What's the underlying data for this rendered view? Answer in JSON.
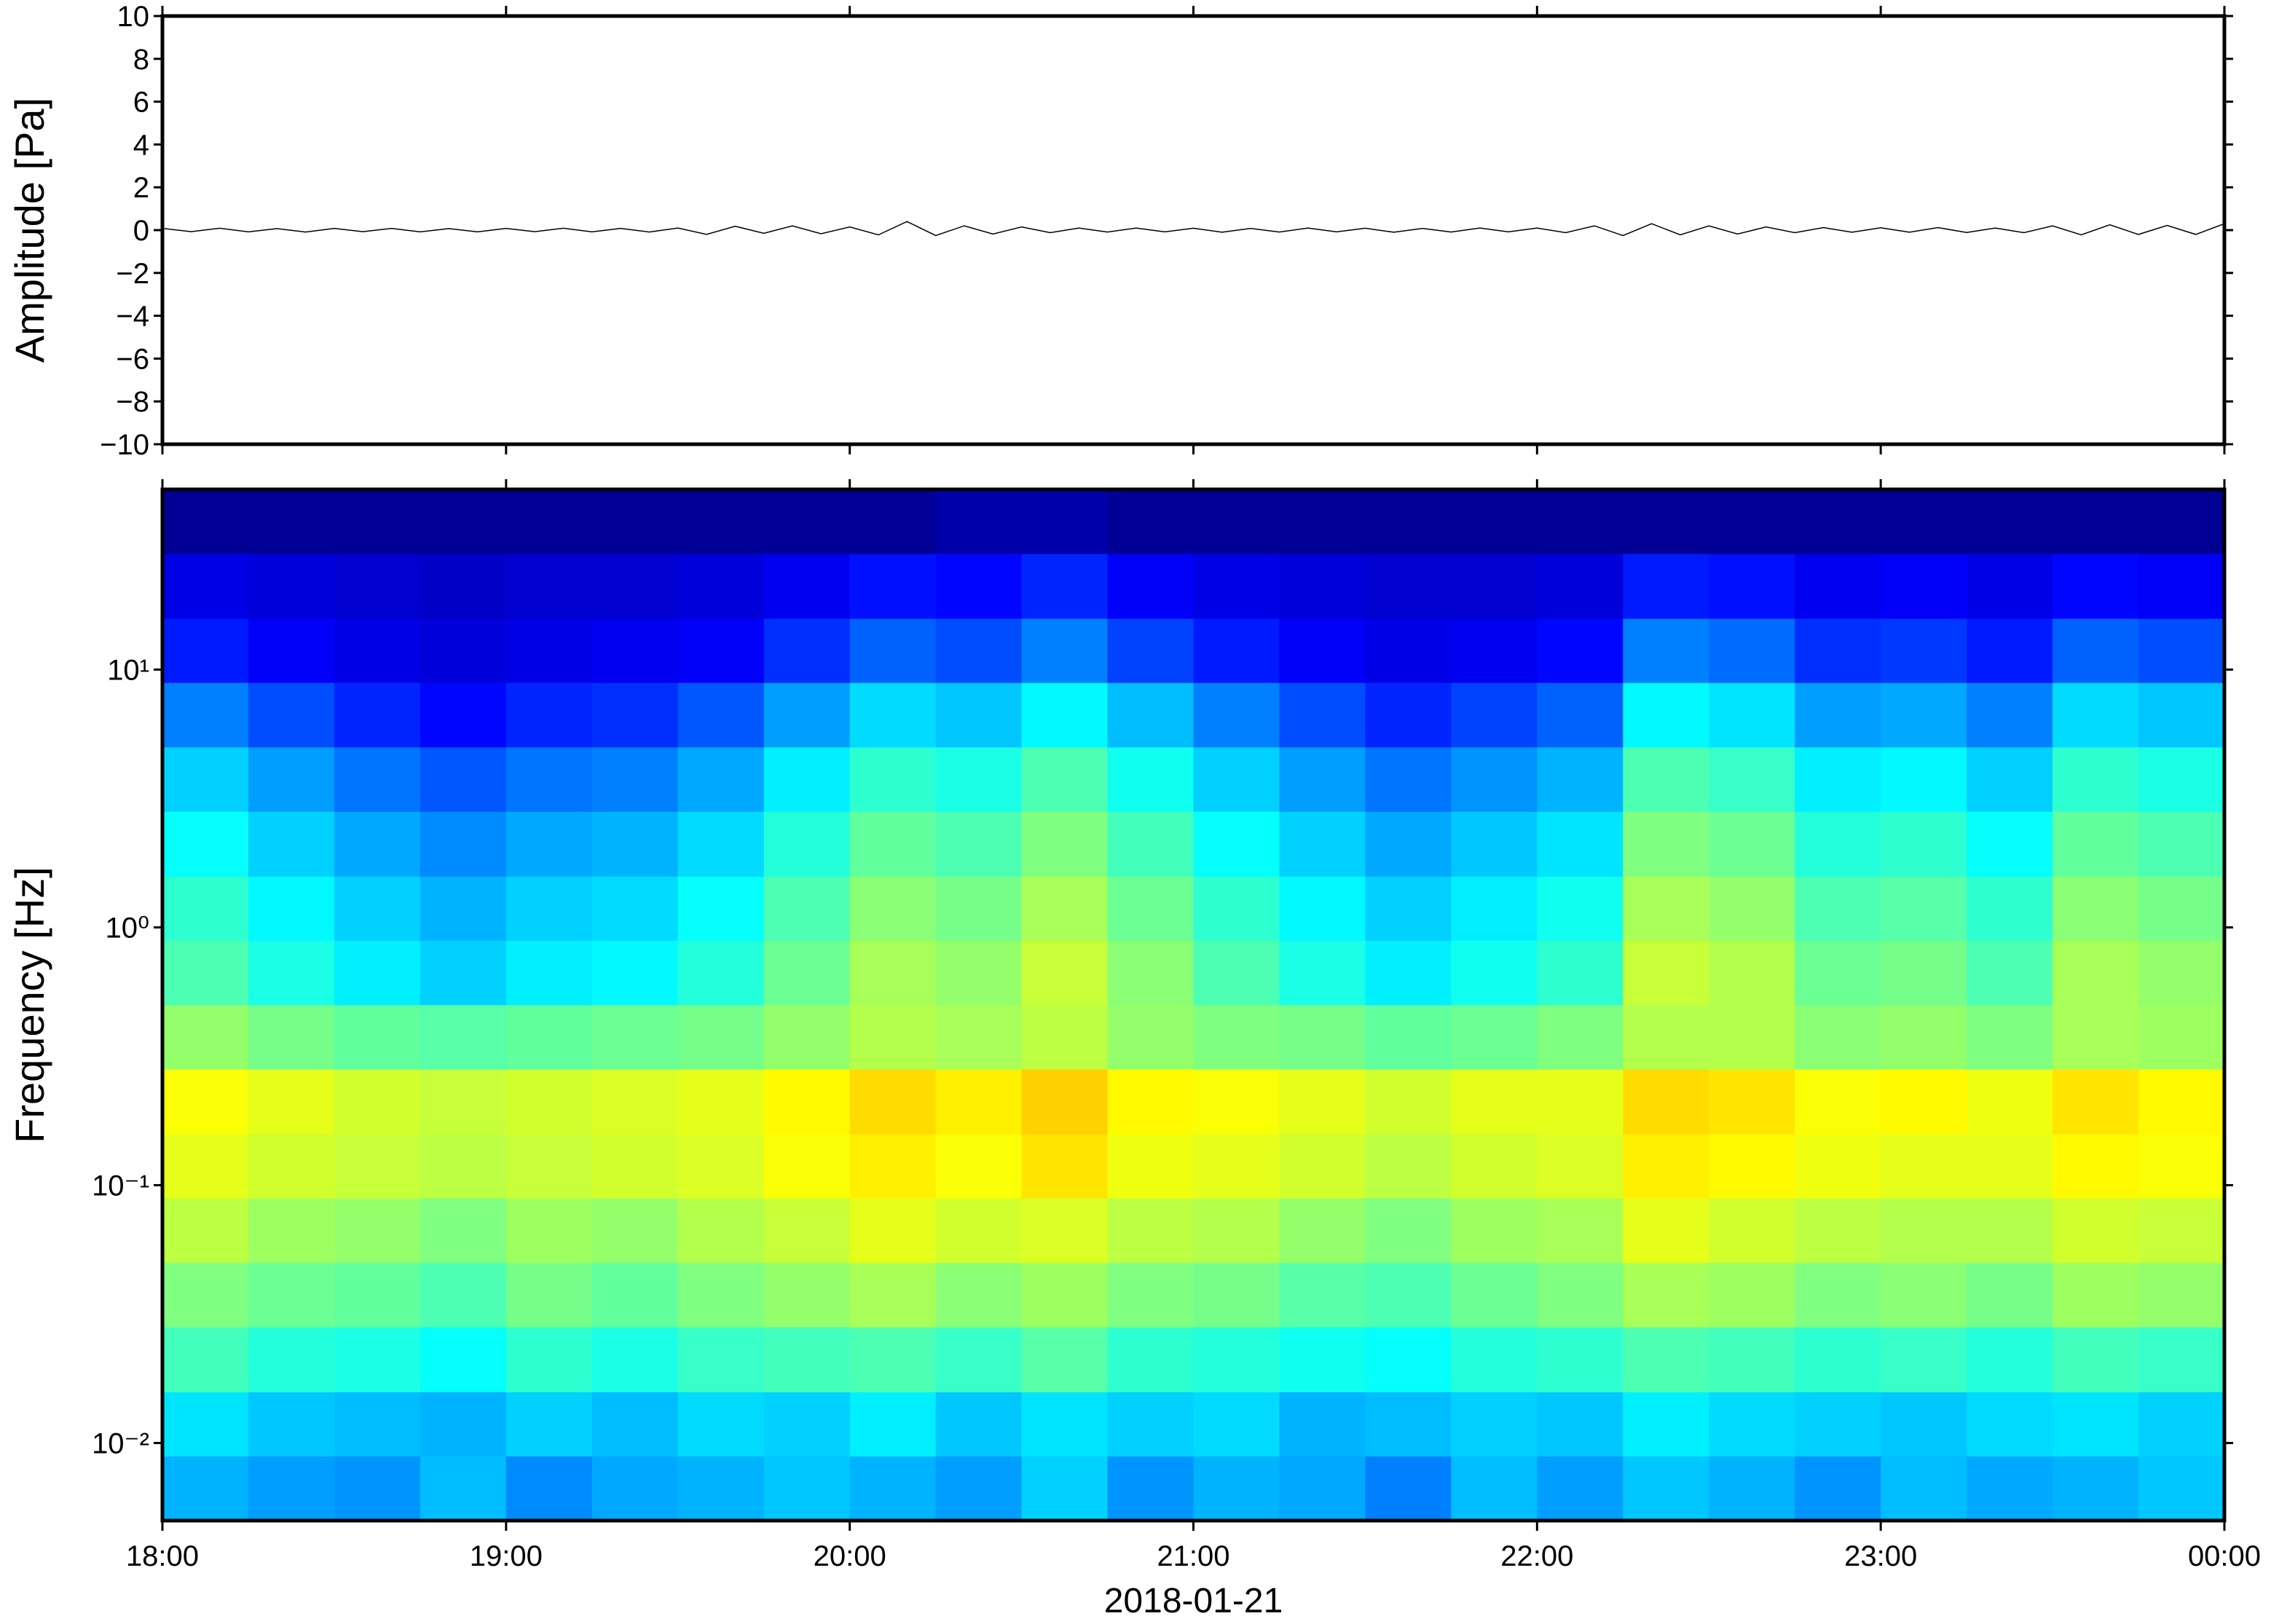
{
  "chart_data": [
    {
      "type": "line",
      "ylabel": "Amplitude [Pa]",
      "xlim": [
        0,
        360
      ],
      "ylim": [
        -10,
        10
      ],
      "yticks": [
        {
          "value": -10,
          "label": "−10"
        },
        {
          "value": -8,
          "label": "−8"
        },
        {
          "value": -6,
          "label": "−6"
        },
        {
          "value": -4,
          "label": "−4"
        },
        {
          "value": -2,
          "label": "−2"
        },
        0,
        2,
        4,
        6,
        8,
        10
      ],
      "color": "#000000",
      "x": [
        0,
        5,
        10,
        15,
        20,
        25,
        30,
        35,
        40,
        45,
        50,
        55,
        60,
        65,
        70,
        75,
        80,
        85,
        90,
        95,
        100,
        105,
        110,
        115,
        120,
        125,
        130,
        135,
        140,
        145,
        150,
        155,
        160,
        165,
        170,
        175,
        180,
        185,
        190,
        195,
        200,
        205,
        210,
        215,
        220,
        225,
        230,
        235,
        240,
        245,
        250,
        255,
        260,
        265,
        270,
        275,
        280,
        285,
        290,
        295,
        300,
        305,
        310,
        315,
        320,
        325,
        330,
        335,
        340,
        345,
        350,
        355,
        360
      ],
      "values": [
        0.08,
        -0.07,
        0.09,
        -0.08,
        0.07,
        -0.09,
        0.08,
        -0.07,
        0.08,
        -0.08,
        0.07,
        -0.08,
        0.08,
        -0.07,
        0.09,
        -0.08,
        0.08,
        -0.09,
        0.1,
        -0.2,
        0.18,
        -0.15,
        0.2,
        -0.17,
        0.15,
        -0.22,
        0.4,
        -0.25,
        0.2,
        -0.18,
        0.15,
        -0.12,
        0.1,
        -0.09,
        0.1,
        -0.08,
        0.09,
        -0.1,
        0.08,
        -0.09,
        0.1,
        -0.08,
        0.09,
        -0.1,
        0.08,
        -0.09,
        0.1,
        -0.08,
        0.1,
        -0.12,
        0.2,
        -0.25,
        0.3,
        -0.22,
        0.2,
        -0.18,
        0.15,
        -0.12,
        0.12,
        -0.1,
        0.11,
        -0.1,
        0.12,
        -0.11,
        0.1,
        -0.12,
        0.2,
        -0.22,
        0.25,
        -0.2,
        0.22,
        -0.2,
        0.3
      ]
    },
    {
      "type": "heatmap",
      "ylabel": "Frequency [Hz]",
      "xlabel": "2018-01-21",
      "colormap": "jet",
      "ylog": true,
      "xlim": [
        0,
        360
      ],
      "ylim": [
        0.005,
        50
      ],
      "xticks": [
        {
          "value": 0,
          "label": "18:00"
        },
        {
          "value": 60,
          "label": "19:00"
        },
        {
          "value": 120,
          "label": "20:00"
        },
        {
          "value": 180,
          "label": "21:00"
        },
        {
          "value": 240,
          "label": "22:00"
        },
        {
          "value": 300,
          "label": "23:00"
        },
        {
          "value": 360,
          "label": "00:00"
        }
      ],
      "yticks": [
        {
          "value": 0.01,
          "label": "10⁻²"
        },
        {
          "value": 0.1,
          "label": "10⁻¹"
        },
        {
          "value": 1,
          "label": "10⁰"
        },
        {
          "value": 10,
          "label": "10¹"
        }
      ],
      "x_edges": [
        0,
        15,
        30,
        45,
        60,
        75,
        90,
        105,
        120,
        135,
        150,
        165,
        180,
        195,
        210,
        225,
        240,
        255,
        270,
        285,
        300,
        315,
        330,
        345,
        360
      ],
      "y_edges": [
        0.005,
        0.0089,
        0.0158,
        0.0282,
        0.0501,
        0.0891,
        0.158,
        0.282,
        0.501,
        0.891,
        1.58,
        2.82,
        5.01,
        8.91,
        15.8,
        28.2,
        50
      ],
      "z": [
        [
          0.3,
          0.28,
          0.27,
          0.31,
          0.26,
          0.29,
          0.3,
          0.32,
          0.3,
          0.28,
          0.33,
          0.27,
          0.3,
          0.29,
          0.25,
          0.31,
          0.28,
          0.32,
          0.3,
          0.27,
          0.31,
          0.29,
          0.3,
          0.32
        ],
        [
          0.35,
          0.32,
          0.31,
          0.3,
          0.33,
          0.31,
          0.34,
          0.33,
          0.36,
          0.32,
          0.35,
          0.33,
          0.34,
          0.3,
          0.31,
          0.33,
          0.32,
          0.36,
          0.34,
          0.33,
          0.32,
          0.34,
          0.35,
          0.33
        ],
        [
          0.44,
          0.41,
          0.4,
          0.38,
          0.42,
          0.4,
          0.43,
          0.44,
          0.45,
          0.43,
          0.46,
          0.42,
          0.41,
          0.39,
          0.38,
          0.41,
          0.42,
          0.45,
          0.44,
          0.42,
          0.43,
          0.41,
          0.44,
          0.43
        ],
        [
          0.5,
          0.48,
          0.47,
          0.45,
          0.49,
          0.47,
          0.5,
          0.52,
          0.54,
          0.51,
          0.53,
          0.5,
          0.49,
          0.46,
          0.45,
          0.48,
          0.5,
          0.54,
          0.53,
          0.5,
          0.51,
          0.49,
          0.53,
          0.52
        ],
        [
          0.56,
          0.53,
          0.52,
          0.5,
          0.53,
          0.52,
          0.55,
          0.57,
          0.6,
          0.58,
          0.59,
          0.56,
          0.55,
          0.52,
          0.5,
          0.53,
          0.54,
          0.6,
          0.58,
          0.56,
          0.55,
          0.55,
          0.58,
          0.57
        ],
        [
          0.6,
          0.58,
          0.57,
          0.56,
          0.57,
          0.58,
          0.59,
          0.62,
          0.64,
          0.62,
          0.65,
          0.61,
          0.6,
          0.58,
          0.56,
          0.58,
          0.59,
          0.64,
          0.63,
          0.61,
          0.6,
          0.6,
          0.63,
          0.62
        ],
        [
          0.62,
          0.6,
          0.58,
          0.57,
          0.58,
          0.59,
          0.6,
          0.63,
          0.66,
          0.64,
          0.67,
          0.63,
          0.62,
          0.6,
          0.58,
          0.6,
          0.6,
          0.66,
          0.65,
          0.62,
          0.63,
          0.61,
          0.65,
          0.63
        ],
        [
          0.52,
          0.49,
          0.47,
          0.46,
          0.47,
          0.48,
          0.49,
          0.52,
          0.55,
          0.54,
          0.56,
          0.52,
          0.5,
          0.49,
          0.47,
          0.48,
          0.5,
          0.55,
          0.55,
          0.51,
          0.52,
          0.5,
          0.54,
          0.53
        ],
        [
          0.45,
          0.4,
          0.36,
          0.33,
          0.36,
          0.37,
          0.41,
          0.48,
          0.54,
          0.52,
          0.57,
          0.51,
          0.45,
          0.4,
          0.36,
          0.39,
          0.42,
          0.57,
          0.55,
          0.48,
          0.49,
          0.45,
          0.54,
          0.52
        ],
        [
          0.42,
          0.37,
          0.33,
          0.3,
          0.33,
          0.34,
          0.38,
          0.45,
          0.51,
          0.49,
          0.54,
          0.48,
          0.42,
          0.37,
          0.33,
          0.36,
          0.39,
          0.54,
          0.52,
          0.45,
          0.46,
          0.42,
          0.51,
          0.49
        ],
        [
          0.38,
          0.33,
          0.29,
          0.26,
          0.29,
          0.3,
          0.34,
          0.41,
          0.47,
          0.45,
          0.5,
          0.44,
          0.38,
          0.33,
          0.29,
          0.32,
          0.35,
          0.5,
          0.48,
          0.41,
          0.42,
          0.38,
          0.47,
          0.45
        ],
        [
          0.33,
          0.28,
          0.24,
          0.21,
          0.24,
          0.25,
          0.29,
          0.36,
          0.42,
          0.4,
          0.45,
          0.39,
          0.33,
          0.28,
          0.24,
          0.27,
          0.3,
          0.45,
          0.43,
          0.36,
          0.37,
          0.33,
          0.42,
          0.4
        ],
        [
          0.25,
          0.2,
          0.16,
          0.13,
          0.16,
          0.17,
          0.21,
          0.28,
          0.34,
          0.32,
          0.37,
          0.31,
          0.25,
          0.2,
          0.16,
          0.19,
          0.22,
          0.37,
          0.35,
          0.28,
          0.29,
          0.25,
          0.34,
          0.32
        ],
        [
          0.15,
          0.12,
          0.1,
          0.09,
          0.1,
          0.11,
          0.12,
          0.17,
          0.22,
          0.2,
          0.25,
          0.19,
          0.15,
          0.12,
          0.1,
          0.11,
          0.13,
          0.25,
          0.23,
          0.17,
          0.18,
          0.15,
          0.22,
          0.2
        ],
        [
          0.1,
          0.09,
          0.08,
          0.07,
          0.08,
          0.08,
          0.09,
          0.11,
          0.14,
          0.13,
          0.16,
          0.12,
          0.1,
          0.09,
          0.08,
          0.08,
          0.09,
          0.15,
          0.14,
          0.11,
          0.12,
          0.1,
          0.13,
          0.12
        ],
        [
          0.02,
          0.02,
          0.02,
          0.02,
          0.02,
          0.02,
          0.02,
          0.02,
          0.02,
          0.04,
          0.04,
          0.02,
          0.02,
          0.02,
          0.02,
          0.02,
          0.02,
          0.02,
          0.02,
          0.02,
          0.02,
          0.02,
          0.02,
          0.02
        ]
      ]
    }
  ]
}
